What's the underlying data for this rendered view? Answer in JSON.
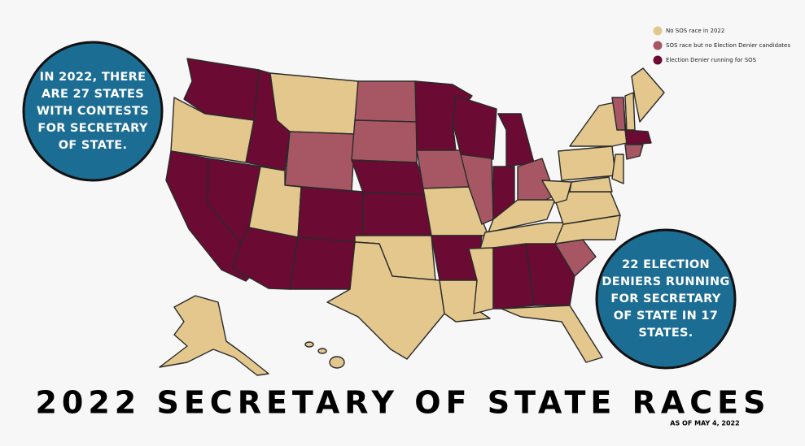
{
  "legend": [
    {
      "label": "No SOS race in 2022",
      "color": "#e3c78d"
    },
    {
      "label": "SOS race but no Election Denier candidates",
      "color": "#a65763"
    },
    {
      "label": "Election Denier running for SOS",
      "color": "#6b0a33"
    }
  ],
  "left_callout": [
    "IN 2022, THERE",
    "ARE 27 STATES",
    "WITH CONTESTS",
    "FOR SECRETARY",
    "OF STATE."
  ],
  "right_callout": [
    "22 ELECTION",
    "DENIERS RUNNING",
    "FOR SECRETARY",
    "OF STATE IN 17",
    "STATES."
  ],
  "title": "2022 SECRETARY OF STATE RACES",
  "subtitle": "AS OF  MAY 4, 2022"
}
